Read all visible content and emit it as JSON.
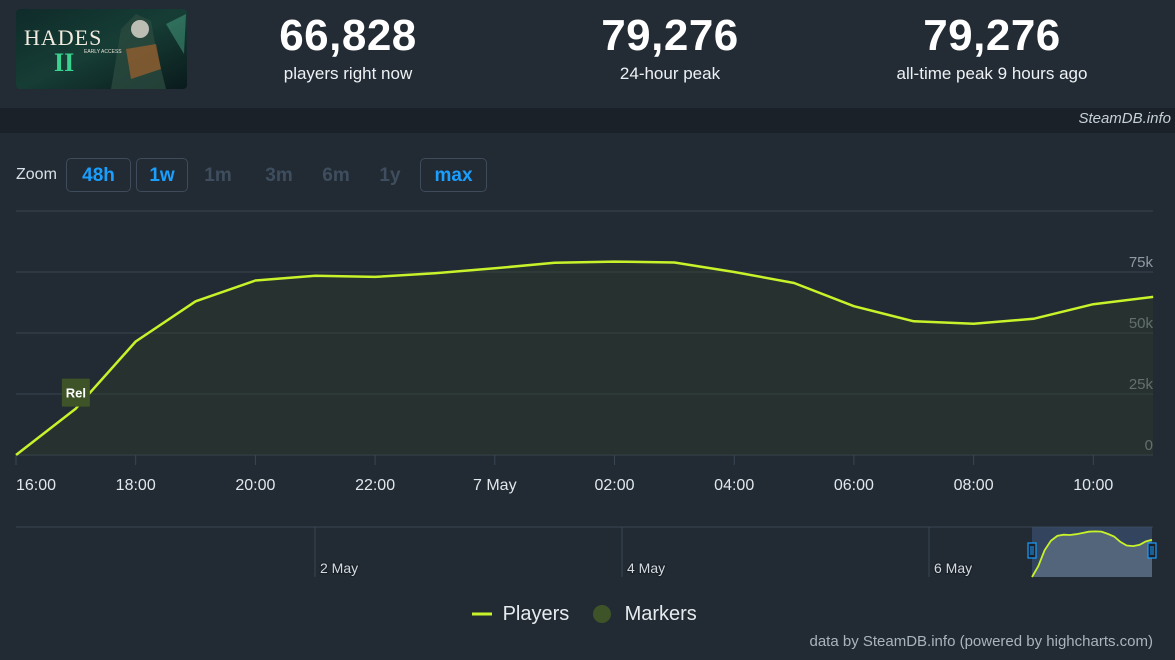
{
  "game": {
    "capsule_title": "HADES",
    "capsule_subtitle": "EARLY ACCESS",
    "capsule_numeral": "II"
  },
  "stats": [
    {
      "value": "66,828",
      "label": "players right now"
    },
    {
      "value": "79,276",
      "label": "24-hour peak"
    },
    {
      "value": "79,276",
      "label": "all-time peak 9 hours ago"
    }
  ],
  "credit_top": "SteamDB.info",
  "zoom": {
    "label": "Zoom",
    "buttons": [
      {
        "label": "48h",
        "enabled": true
      },
      {
        "label": "1w",
        "enabled": true
      },
      {
        "label": "1m",
        "enabled": false
      },
      {
        "label": "3m",
        "enabled": false
      },
      {
        "label": "6m",
        "enabled": false
      },
      {
        "label": "1y",
        "enabled": false
      },
      {
        "label": "max",
        "enabled": true
      }
    ]
  },
  "chart_data": {
    "type": "area",
    "series": [
      {
        "name": "Players",
        "color": "#c8f229",
        "x": [
          "16:00",
          "17:00",
          "18:00",
          "19:00",
          "20:00",
          "21:00",
          "22:00",
          "23:00",
          "7 May 00:00",
          "01:00",
          "02:00",
          "03:00",
          "04:00",
          "05:00",
          "06:00",
          "07:00",
          "08:00",
          "09:00",
          "10:00",
          "11:00"
        ],
        "values": [
          0,
          19000,
          46500,
          63000,
          71500,
          73500,
          73000,
          74500,
          76500,
          78800,
          79276,
          78900,
          75000,
          70500,
          61000,
          54800,
          53800,
          55800,
          61800,
          64800
        ]
      }
    ],
    "x_tick_labels": [
      "16:00",
      "18:00",
      "20:00",
      "22:00",
      "7 May",
      "02:00",
      "04:00",
      "06:00",
      "08:00",
      "10:00"
    ],
    "y_tick_labels": [
      "0",
      "25k",
      "50k",
      "75k"
    ],
    "ylim": [
      0,
      100000
    ],
    "y_axis_side": "right",
    "grid": true,
    "markers": [
      {
        "label": "Rel",
        "x": "17:00",
        "color": "#3e5428"
      }
    ],
    "navigator_labels": [
      "2 May",
      "4 May",
      "6 May"
    ],
    "legend": [
      {
        "name": "Players",
        "color": "#c8f229"
      },
      {
        "name": "Markers",
        "color": "#3e5428"
      }
    ],
    "legend_position": "bottom-center"
  },
  "credit_bottom": "data by SteamDB.info (powered by highcharts.com)"
}
